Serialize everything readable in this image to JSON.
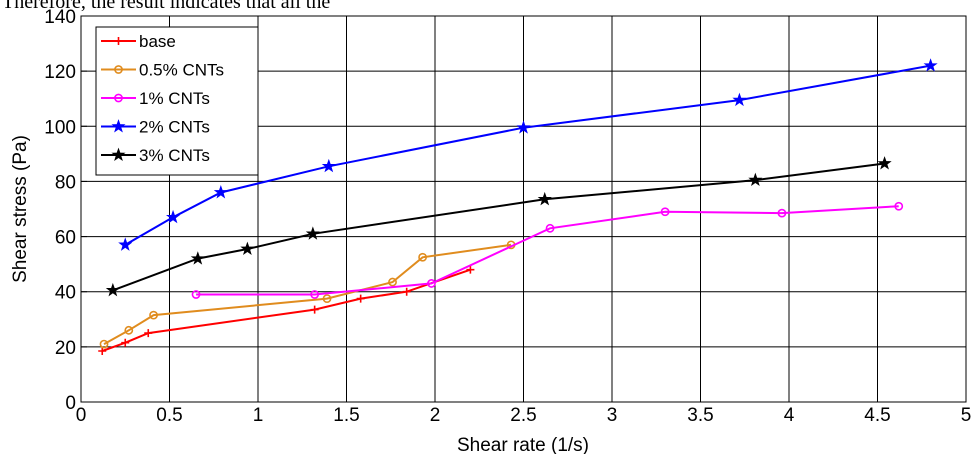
{
  "page": {
    "header_text": "Therefore, the result indicates that all the"
  },
  "chart_data": {
    "type": "line",
    "title": "",
    "xlabel": "Shear rate (1/s)",
    "ylabel": "Shear stress (Pa)",
    "xlim": [
      0,
      5
    ],
    "ylim": [
      0,
      140
    ],
    "xticks": [
      0,
      0.5,
      1,
      1.5,
      2,
      2.5,
      3,
      3.5,
      4,
      4.5,
      5
    ],
    "xtick_labels": [
      "0",
      "0.5",
      "1",
      "1.5",
      "2",
      "2.5",
      "3",
      "3.5",
      "4",
      "4.5",
      "5"
    ],
    "yticks": [
      0,
      20,
      40,
      60,
      80,
      100,
      120,
      140
    ],
    "ytick_labels": [
      "0",
      "20",
      "40",
      "60",
      "80",
      "100",
      "120",
      "140"
    ],
    "grid": true,
    "legend_position": "top-left",
    "series": [
      {
        "name": "base",
        "color": "#ff0000",
        "marker": "plus",
        "x": [
          0.12,
          0.25,
          0.38,
          1.32,
          1.58,
          1.84,
          2.2
        ],
        "y": [
          18.5,
          21.5,
          25,
          33.5,
          37.5,
          40,
          48
        ]
      },
      {
        "name": "0.5% CNTs",
        "color": "#e08c1e",
        "marker": "circle",
        "x": [
          0.13,
          0.27,
          0.41,
          1.39,
          1.76,
          1.93,
          2.43
        ],
        "y": [
          21,
          26,
          31.5,
          37.5,
          43.5,
          52.5,
          57
        ]
      },
      {
        "name": "1% CNTs",
        "color": "#ff00ff",
        "marker": "circle",
        "x": [
          0.65,
          1.32,
          1.98,
          2.65,
          3.3,
          3.96,
          4.62
        ],
        "y": [
          39,
          39,
          43,
          63,
          69,
          68.5,
          71
        ]
      },
      {
        "name": "2% CNTs",
        "color": "#0000ff",
        "marker": "star",
        "x": [
          0.25,
          0.52,
          0.79,
          1.4,
          2.5,
          3.72,
          4.8
        ],
        "y": [
          57,
          67,
          76,
          85.5,
          99.5,
          109.5,
          122
        ]
      },
      {
        "name": "3% CNTs",
        "color": "#000000",
        "marker": "star",
        "x": [
          0.18,
          0.66,
          0.94,
          1.31,
          2.62,
          3.81,
          4.54
        ],
        "y": [
          40.5,
          52,
          55.5,
          61,
          73.5,
          80.5,
          86.5
        ]
      }
    ]
  }
}
